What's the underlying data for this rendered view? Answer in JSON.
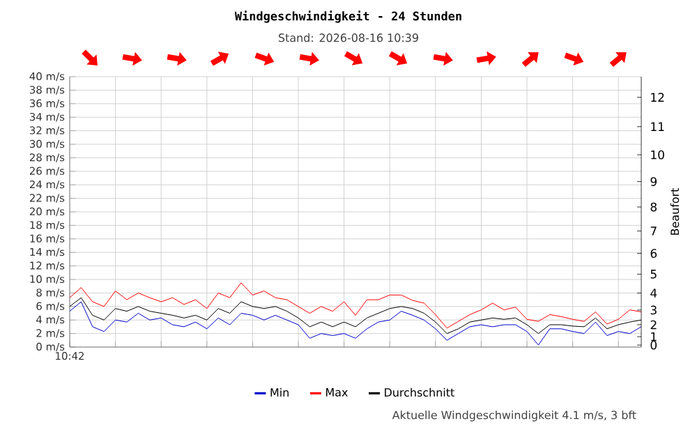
{
  "chart_data": {
    "type": "line",
    "title": "Windgeschwindigkeit - 24 Stunden",
    "subtitle": "Stand: 2026-08-16 10:39",
    "y2label": "Beaufort",
    "annotations": [
      "Aktuelle Windgeschwindigkeit 4.1 m/s, 3 bft",
      "0",
      "1",
      "2",
      "3",
      "4",
      "5",
      "6",
      "7",
      "8",
      "9",
      "10",
      "11",
      "12"
    ],
    "categories": [
      "10:42",
      null,
      null,
      null,
      null,
      null,
      null,
      null,
      null,
      null,
      null,
      null,
      null,
      null,
      null,
      null,
      null,
      null,
      null,
      null,
      null,
      null,
      null,
      null,
      null,
      null,
      null,
      null,
      null,
      null,
      null,
      null,
      null,
      null,
      null,
      null,
      null,
      null,
      null,
      null,
      null,
      null,
      null,
      null,
      null,
      null,
      null,
      null,
      null,
      null,
      null
    ],
    "series": [
      {
        "name": "Min",
        "color": "#0000cc",
        "values": [
          5.3,
          6.7,
          3,
          2.3,
          4,
          3.7,
          5,
          4,
          4.3,
          3.3,
          3,
          3.7,
          2.7,
          4.3,
          3.3,
          5,
          4.7,
          4,
          4.7,
          4,
          3.3,
          1.3,
          2,
          1.7,
          2,
          1.3,
          2.7,
          3.7,
          4,
          5.3,
          4.7,
          4,
          2.7,
          1.0,
          2,
          3,
          3.3,
          3,
          3.3,
          3.3,
          2.3,
          0.3,
          2.7,
          2.7,
          2.3,
          2,
          3.7,
          1.7,
          2.3,
          2,
          3
        ]
      },
      {
        "name": "Max",
        "color": "#ff0000",
        "values": [
          7.3,
          8.8,
          6.7,
          6.0,
          8.3,
          7.0,
          8.0,
          7.3,
          6.7,
          7.3,
          6.3,
          7.0,
          5.7,
          8.0,
          7.3,
          9.5,
          7.7,
          8.3,
          7.3,
          7.0,
          6.0,
          5.0,
          6.0,
          5.3,
          6.7,
          4.7,
          7.0,
          7.0,
          7.7,
          7.7,
          6.9,
          6.5,
          4.8,
          2.8,
          3.8,
          4.8,
          5.5,
          6.5,
          5.5,
          5.9,
          4.1,
          3.8,
          4.8,
          4.5,
          4.1,
          3.8,
          5.2,
          3.4,
          4.1,
          5.5,
          5.2
        ]
      },
      {
        "name": "Durchschnitt",
        "color": "#000000",
        "values": [
          6,
          7.3,
          4.7,
          4,
          5.7,
          5.3,
          6,
          5.3,
          5,
          4.7,
          4.3,
          4.7,
          4,
          5.7,
          5,
          6.7,
          6,
          5.7,
          6,
          5.3,
          4.3,
          3,
          3.7,
          3,
          3.7,
          3,
          4.3,
          5,
          5.7,
          6,
          5.7,
          5,
          3.7,
          2,
          2.7,
          3.7,
          4,
          4.3,
          4.1,
          4.3,
          3.3,
          2,
          3.3,
          3.3,
          3.1,
          3,
          4.3,
          2.7,
          3.3,
          3.7,
          4
        ]
      }
    ],
    "ylim": [
      0,
      40
    ],
    "yticks": [
      {
        "value": 0,
        "label": "0 m/s"
      },
      {
        "value": 2,
        "label": "2 m/s"
      },
      {
        "value": 4,
        "label": "4 m/s"
      },
      {
        "value": 6,
        "label": "6 m/s"
      },
      {
        "value": 8,
        "label": "8 m/s"
      },
      {
        "value": 10,
        "label": "10 m/s"
      },
      {
        "value": 12,
        "label": "12 m/s"
      },
      {
        "value": 14,
        "label": "14 m/s"
      },
      {
        "value": 16,
        "label": "16 m/s"
      },
      {
        "value": 18,
        "label": "18 m/s"
      },
      {
        "value": 20,
        "label": "20 m/s"
      },
      {
        "value": 22,
        "label": "22 m/s"
      },
      {
        "value": 24,
        "label": "24 m/s"
      },
      {
        "value": 26,
        "label": "26 m/s"
      },
      {
        "value": 28,
        "label": "28 m/s"
      },
      {
        "value": 30,
        "label": "30 m/s"
      },
      {
        "value": 32,
        "label": "32 m/s"
      },
      {
        "value": 34,
        "label": "34 m/s"
      },
      {
        "value": 36,
        "label": "36 m/s"
      },
      {
        "value": 38,
        "label": "38 m/s"
      },
      {
        "value": 40,
        "label": "40 m/s"
      }
    ],
    "grid": true,
    "legend": "bottom",
    "marker": "none",
    "line_style": "solid"
  }
}
